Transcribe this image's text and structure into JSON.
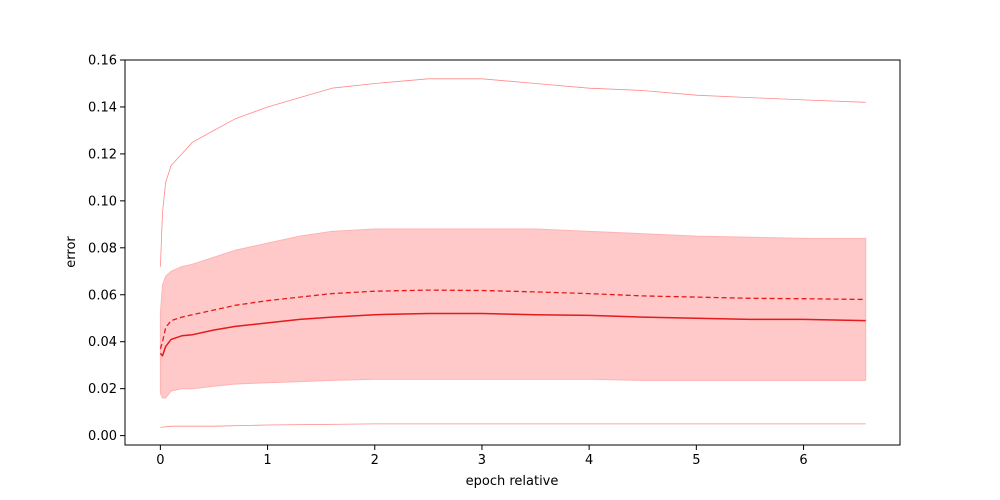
{
  "chart_data": {
    "type": "line",
    "title": "",
    "xlabel": "epoch relative",
    "ylabel": "error",
    "xlim": [
      -0.33,
      6.9
    ],
    "ylim": [
      -0.004,
      0.16
    ],
    "xticks": [
      0,
      1,
      2,
      3,
      4,
      5,
      6
    ],
    "yticks": [
      0.0,
      0.02,
      0.04,
      0.06,
      0.08,
      0.1,
      0.12,
      0.14,
      0.16
    ],
    "ytick_labels": [
      "0.00",
      "0.02",
      "0.04",
      "0.06",
      "0.08",
      "0.10",
      "0.12",
      "0.14",
      "0.16"
    ],
    "grid": false,
    "legend": "none",
    "colors": {
      "main": "#e41a1c",
      "band": "#ffc9c9",
      "band_edge": "#ffb3b3",
      "extreme": "#ff8a8a"
    },
    "band": {
      "x": [
        0,
        0.02,
        0.05,
        0.1,
        0.2,
        0.3,
        0.5,
        0.7,
        1.0,
        1.3,
        1.6,
        2.0,
        2.5,
        3.0,
        3.5,
        4.0,
        4.5,
        5.0,
        5.5,
        6.0,
        6.58
      ],
      "upper": [
        0.052,
        0.064,
        0.068,
        0.07,
        0.072,
        0.073,
        0.076,
        0.079,
        0.082,
        0.085,
        0.087,
        0.088,
        0.088,
        0.088,
        0.088,
        0.087,
        0.086,
        0.085,
        0.0845,
        0.084,
        0.084
      ],
      "lower": [
        0.018,
        0.016,
        0.016,
        0.019,
        0.02,
        0.02,
        0.021,
        0.022,
        0.0225,
        0.023,
        0.0235,
        0.024,
        0.024,
        0.024,
        0.024,
        0.024,
        0.0235,
        0.0235,
        0.0235,
        0.0235,
        0.0235
      ]
    },
    "series": [
      {
        "style": "solid",
        "x": [
          0,
          0.02,
          0.05,
          0.1,
          0.2,
          0.3,
          0.5,
          0.7,
          1.0,
          1.3,
          1.6,
          2.0,
          2.5,
          3.0,
          3.5,
          4.0,
          4.5,
          5.0,
          5.5,
          6.0,
          6.58
        ],
        "y": [
          0.035,
          0.034,
          0.038,
          0.041,
          0.0425,
          0.043,
          0.045,
          0.0465,
          0.048,
          0.0495,
          0.0505,
          0.0515,
          0.052,
          0.052,
          0.0515,
          0.0512,
          0.0505,
          0.05,
          0.0495,
          0.0495,
          0.049
        ]
      },
      {
        "style": "dashed",
        "x": [
          0,
          0.02,
          0.05,
          0.1,
          0.2,
          0.3,
          0.5,
          0.7,
          1.0,
          1.3,
          1.6,
          2.0,
          2.5,
          3.0,
          3.5,
          4.0,
          4.5,
          5.0,
          5.5,
          6.0,
          6.58
        ],
        "y": [
          0.037,
          0.04,
          0.046,
          0.049,
          0.0505,
          0.0515,
          0.0535,
          0.0555,
          0.0575,
          0.059,
          0.0605,
          0.0615,
          0.062,
          0.0618,
          0.0612,
          0.0605,
          0.0595,
          0.059,
          0.0585,
          0.0583,
          0.058
        ]
      },
      {
        "style": "thin",
        "x": [
          0,
          0.02,
          0.05,
          0.1,
          0.2,
          0.3,
          0.5,
          0.7,
          1.0,
          1.3,
          1.6,
          2.0,
          2.5,
          3.0,
          3.5,
          4.0,
          4.5,
          5.0,
          5.5,
          6.0,
          6.58
        ],
        "y": [
          0.072,
          0.095,
          0.108,
          0.115,
          0.12,
          0.125,
          0.13,
          0.135,
          0.14,
          0.144,
          0.148,
          0.15,
          0.152,
          0.152,
          0.15,
          0.148,
          0.147,
          0.145,
          0.144,
          0.143,
          0.142
        ]
      },
      {
        "style": "thin",
        "x": [
          0,
          0.1,
          0.5,
          1.0,
          2.0,
          3.0,
          4.0,
          5.0,
          6.0,
          6.58
        ],
        "y": [
          0.0035,
          0.004,
          0.004,
          0.0045,
          0.005,
          0.005,
          0.005,
          0.005,
          0.005,
          0.005
        ]
      }
    ]
  }
}
